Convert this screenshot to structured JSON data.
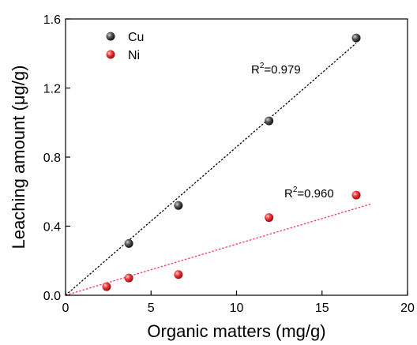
{
  "chart_data": {
    "type": "scatter",
    "title": "",
    "xlabel": "Organic matters (mg/g)",
    "ylabel": "Leaching amount (μg/g)",
    "xlim": [
      0,
      20
    ],
    "ylim": [
      0,
      1.6
    ],
    "xticks": [
      0,
      5,
      10,
      15,
      20
    ],
    "yticks": [
      0.0,
      0.4,
      0.8,
      1.2,
      1.6
    ],
    "xtick_labels": [
      "0",
      "5",
      "10",
      "15",
      "20"
    ],
    "ytick_labels": [
      "0.0",
      "0.4",
      "0.8",
      "1.2",
      "1.6"
    ],
    "grid": false,
    "legend_position": "top-left",
    "series": [
      {
        "name": "Cu",
        "color": "#333333",
        "points": [
          [
            3.7,
            0.3
          ],
          [
            6.6,
            0.52
          ],
          [
            11.9,
            1.01
          ],
          [
            17.0,
            1.49
          ]
        ],
        "fit": {
          "x": [
            0,
            17.0
          ],
          "y": [
            0,
            1.46
          ],
          "color": "#000000",
          "label_base": "R",
          "label_exp": "2",
          "label_rest": "=0.979"
        }
      },
      {
        "name": "Ni",
        "color": "#e8302e",
        "points": [
          [
            2.4,
            0.05
          ],
          [
            3.7,
            0.1
          ],
          [
            6.6,
            0.12
          ],
          [
            11.9,
            0.45
          ],
          [
            17.0,
            0.58
          ]
        ],
        "fit": {
          "x": [
            0,
            17.9
          ],
          "y": [
            0,
            0.53
          ],
          "color": "#ff3366",
          "label_base": "R",
          "label_exp": "2",
          "label_rest": "=0.960"
        }
      }
    ]
  }
}
